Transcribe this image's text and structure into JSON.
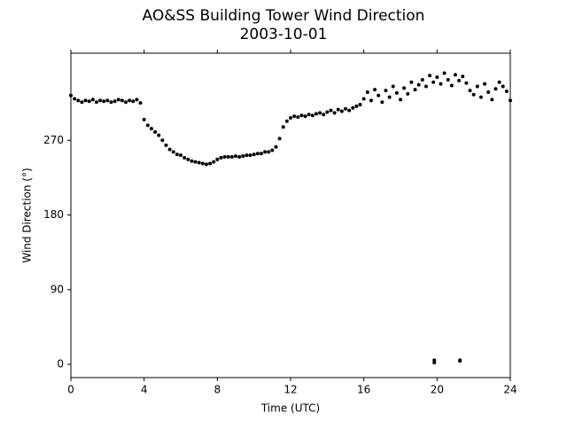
{
  "chart_data": {
    "type": "scatter",
    "title": "AO&SS Building Tower Wind Direction",
    "subtitle": "2003-10-01",
    "x_label": "Time (UTC)",
    "y_label": "Wind Direction (°)",
    "color": "#000000",
    "xlim": [
      0,
      24
    ],
    "xticks": [
      0,
      4,
      8,
      12,
      16,
      20,
      24
    ],
    "ylim": [
      -16,
      375
    ],
    "yticks": [
      0,
      90,
      180,
      270
    ],
    "x": [
      0,
      0.2,
      0.4,
      0.6,
      0.8,
      1,
      1.2,
      1.4,
      1.6,
      1.8,
      2,
      2.2,
      2.4,
      2.6,
      2.8,
      3,
      3.2,
      3.4,
      3.6,
      3.8,
      4,
      4.2,
      4.4,
      4.6,
      4.8,
      5,
      5.2,
      5.4,
      5.6,
      5.8,
      6,
      6.2,
      6.4,
      6.6,
      6.8,
      7,
      7.2,
      7.4,
      7.6,
      7.8,
      8,
      8.2,
      8.4,
      8.6,
      8.8,
      9,
      9.2,
      9.4,
      9.6,
      9.8,
      10,
      10.2,
      10.4,
      10.6,
      10.8,
      11,
      11.2,
      11.4,
      11.6,
      11.8,
      12,
      12.2,
      12.4,
      12.6,
      12.8,
      13,
      13.2,
      13.4,
      13.6,
      13.8,
      14,
      14.2,
      14.4,
      14.6,
      14.8,
      15,
      15.2,
      15.4,
      15.6,
      15.8,
      16,
      16.2,
      16.4,
      16.6,
      16.8,
      17,
      17.2,
      17.4,
      17.6,
      17.8,
      18,
      18.2,
      18.4,
      18.6,
      18.8,
      19,
      19.2,
      19.4,
      19.6,
      19.8,
      20,
      20.2,
      20.4,
      20.6,
      20.8,
      21,
      21.2,
      21.4,
      21.6,
      21.8,
      22,
      22.2,
      22.4,
      22.6,
      22.8,
      23,
      23.2,
      23.4,
      23.6,
      23.8,
      24,
      19.85,
      19.85,
      21.25,
      21.25
    ],
    "values": [
      324,
      320,
      318,
      316,
      318,
      317,
      319,
      316,
      318,
      317,
      318,
      316,
      317,
      319,
      318,
      316,
      318,
      317,
      319,
      315,
      295,
      288,
      284,
      280,
      276,
      270,
      264,
      259,
      256,
      253,
      252,
      249,
      247,
      245,
      244,
      243,
      242,
      241,
      242,
      244,
      247,
      249,
      250,
      250,
      250,
      251,
      250,
      251,
      252,
      252,
      253,
      254,
      254,
      256,
      256,
      258,
      262,
      272,
      286,
      293,
      297,
      299,
      298,
      300,
      299,
      301,
      300,
      302,
      303,
      301,
      304,
      306,
      303,
      307,
      305,
      308,
      306,
      309,
      311,
      313,
      320,
      328,
      318,
      331,
      324,
      316,
      330,
      322,
      335,
      327,
      319,
      333,
      326,
      340,
      331,
      337,
      343,
      335,
      348,
      340,
      346,
      338,
      351,
      343,
      336,
      349,
      342,
      347,
      339,
      330,
      325,
      335,
      322,
      338,
      328,
      319,
      332,
      340,
      335,
      329,
      318,
      5,
      2,
      5,
      4
    ]
  }
}
